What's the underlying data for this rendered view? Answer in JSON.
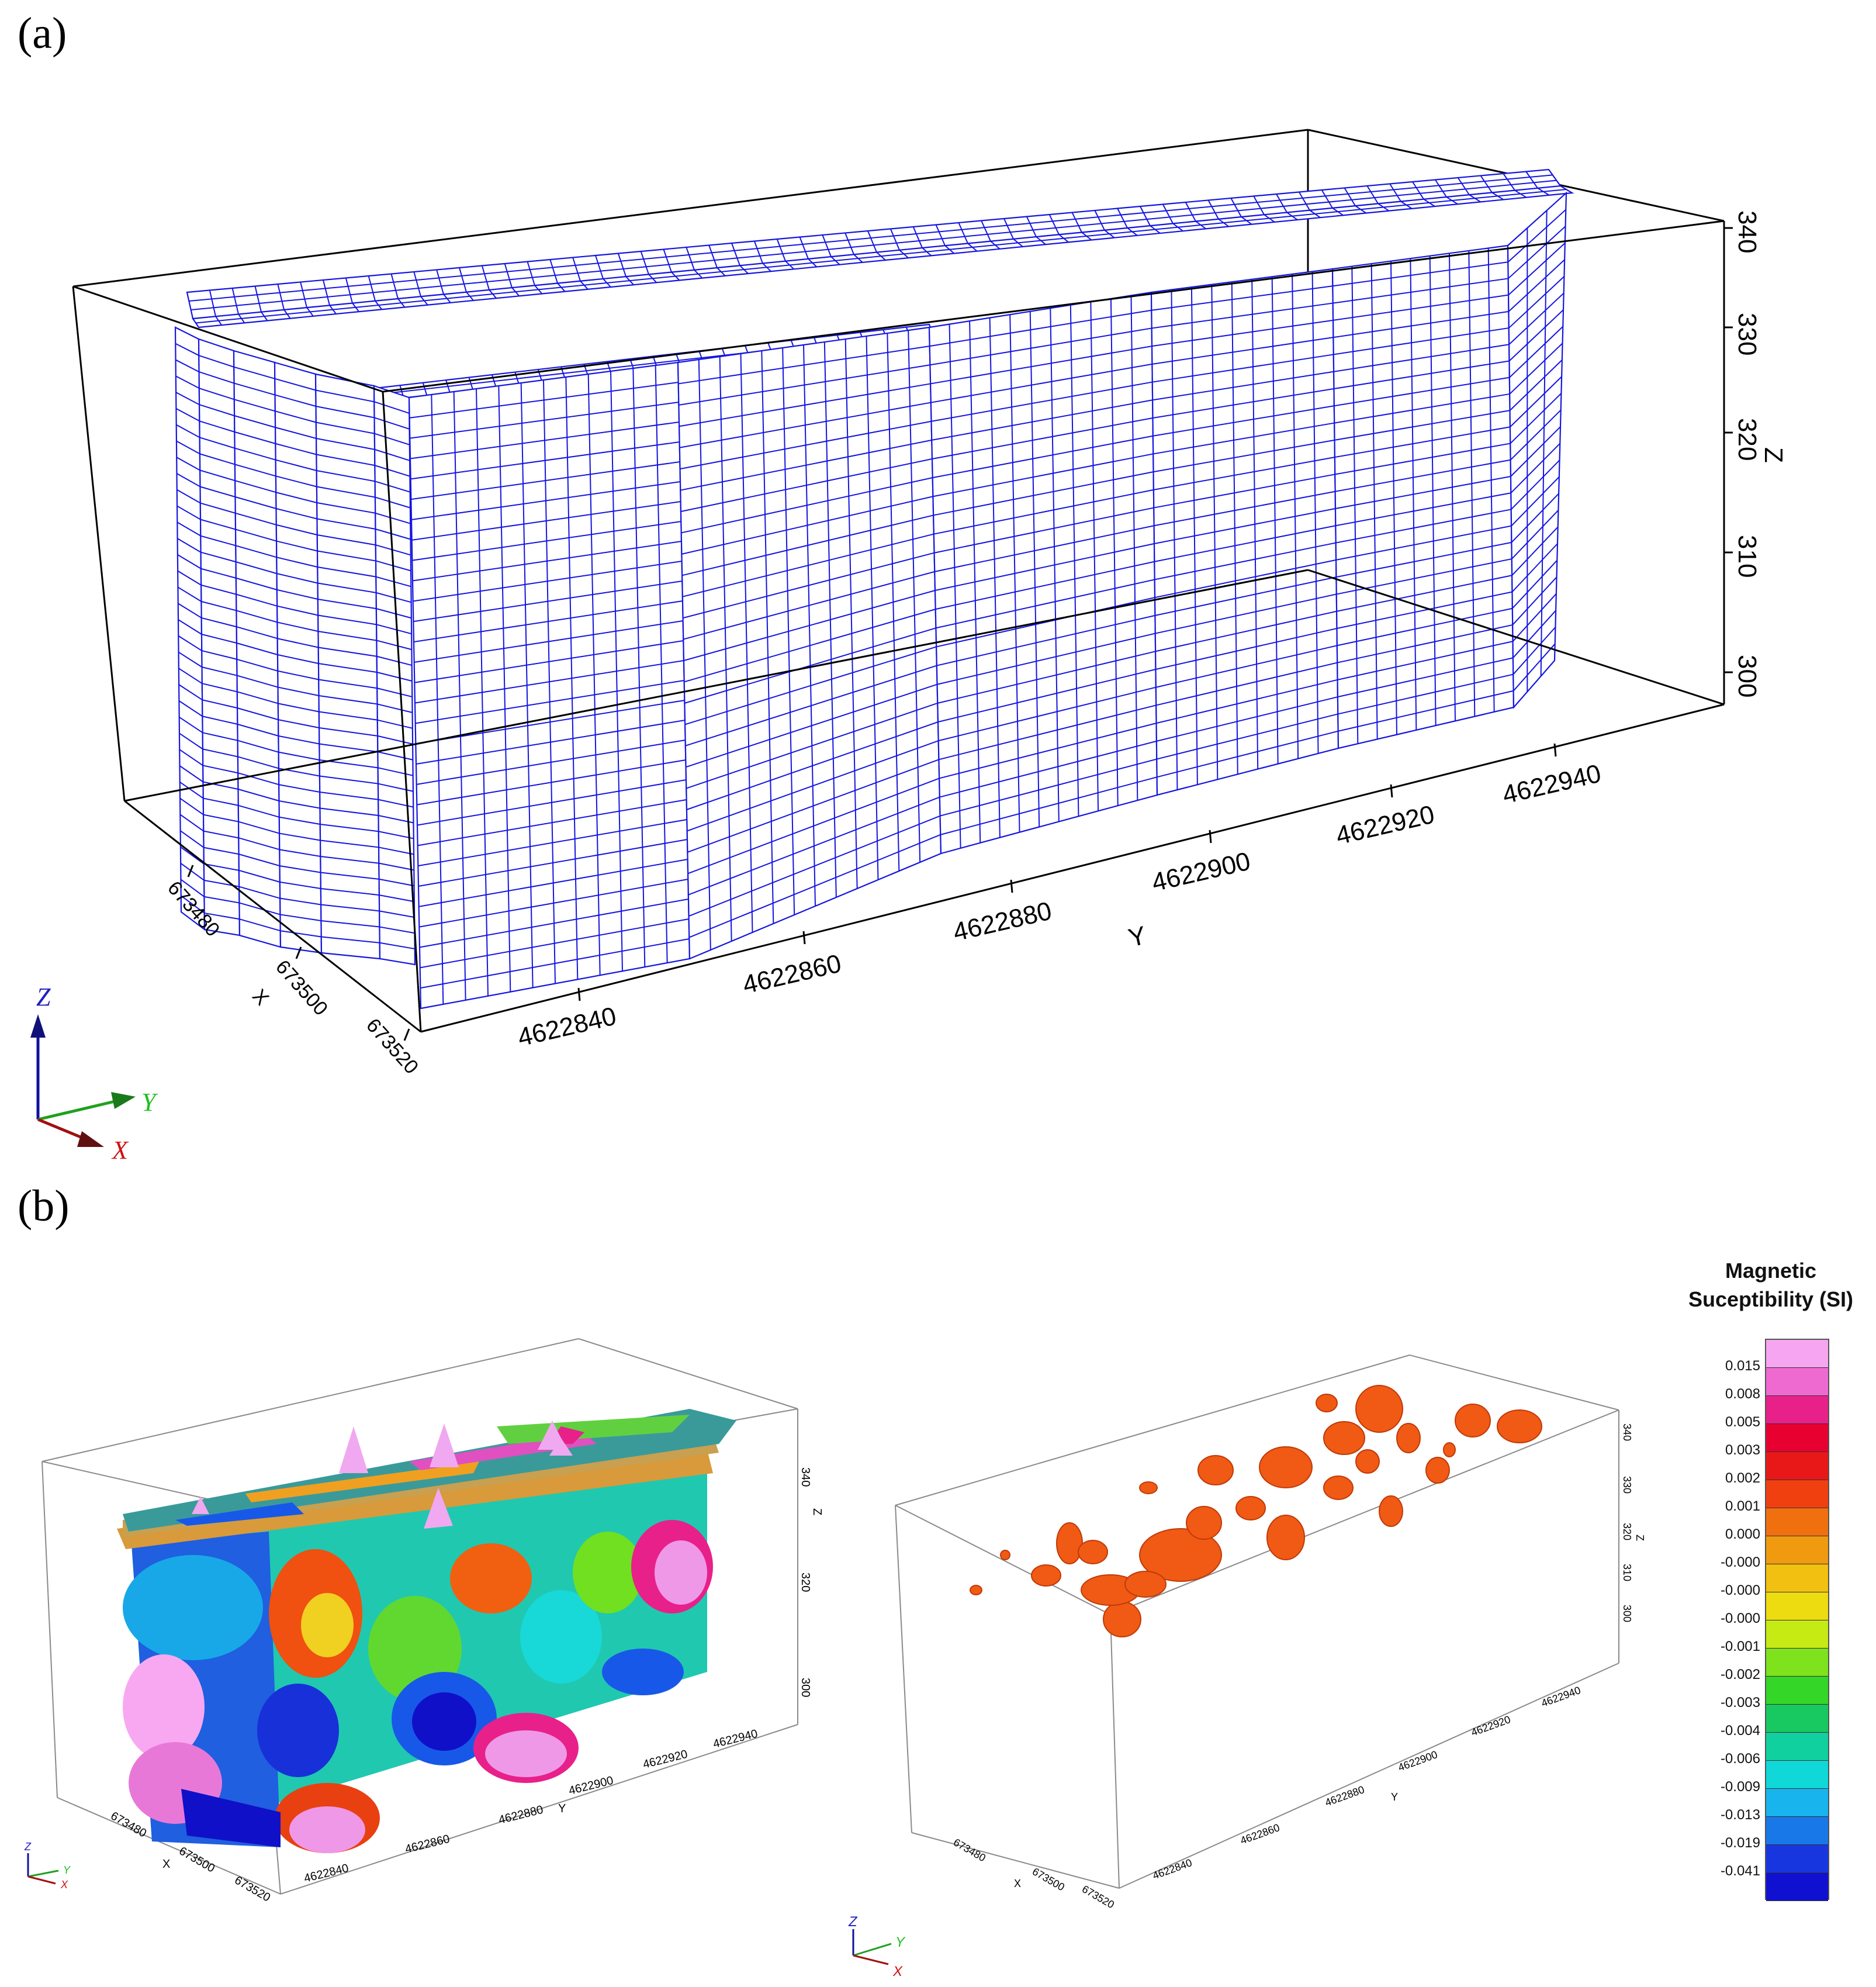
{
  "panel_a": {
    "label": "(a)",
    "z_ticks": [
      "300",
      "310",
      "320",
      "330",
      "340"
    ],
    "z_axis_label": "Z",
    "y_ticks": [
      "4622840",
      "4622860",
      "4622880",
      "4622900",
      "4622920",
      "4622940"
    ],
    "y_axis_label": "Y",
    "x_ticks": [
      "673480",
      "673500",
      "673520"
    ],
    "x_axis_label": "X",
    "triad": {
      "z": "Z",
      "y": "Y",
      "x": "X"
    },
    "mesh_color": "#1515e0"
  },
  "panel_b": {
    "label": "(b)",
    "left": {
      "z_ticks": [
        "300",
        "320",
        "340"
      ],
      "z_axis_label": "Z",
      "y_ticks": [
        "4622840",
        "4622860",
        "4622880",
        "4622900",
        "4622920",
        "4622940"
      ],
      "y_axis_label": "Y",
      "x_ticks": [
        "673480",
        "673500",
        "673520"
      ],
      "x_axis_label": "X",
      "triad": {
        "z": "Z",
        "y": "Y",
        "x": "X"
      }
    },
    "right": {
      "z_ticks": [
        "300",
        "310",
        "320",
        "330",
        "340"
      ],
      "z_axis_label": "Z",
      "y_ticks": [
        "4622840",
        "4622860",
        "4622880",
        "4622900",
        "4622920",
        "4622940"
      ],
      "y_axis_label": "Y",
      "x_ticks": [
        "673480",
        "673500",
        "673520"
      ],
      "x_axis_label": "X",
      "triad": {
        "z": "Z",
        "y": "Y",
        "x": "X"
      },
      "isosurface_color": "#f05a14"
    }
  },
  "legend": {
    "title_line1": "Magnetic",
    "title_line2": "Suceptibility (SI)",
    "values": [
      "0.015",
      "0.008",
      "0.005",
      "0.003",
      "0.002",
      "0.001",
      "0.000",
      "-0.000",
      "-0.000",
      "-0.000",
      "-0.001",
      "-0.002",
      "-0.003",
      "-0.004",
      "-0.006",
      "-0.009",
      "-0.013",
      "-0.019",
      "-0.041"
    ],
    "colors": [
      "#f6a6f0",
      "#ee6ad0",
      "#e8208a",
      "#e80030",
      "#e81818",
      "#f04010",
      "#f07010",
      "#f09a10",
      "#f2c010",
      "#ecdc10",
      "#c6ea14",
      "#7ee21c",
      "#34d628",
      "#18c860",
      "#10d0a0",
      "#10d8d8",
      "#18b4ee",
      "#1878e8",
      "#1836e0",
      "#1010d0"
    ]
  }
}
